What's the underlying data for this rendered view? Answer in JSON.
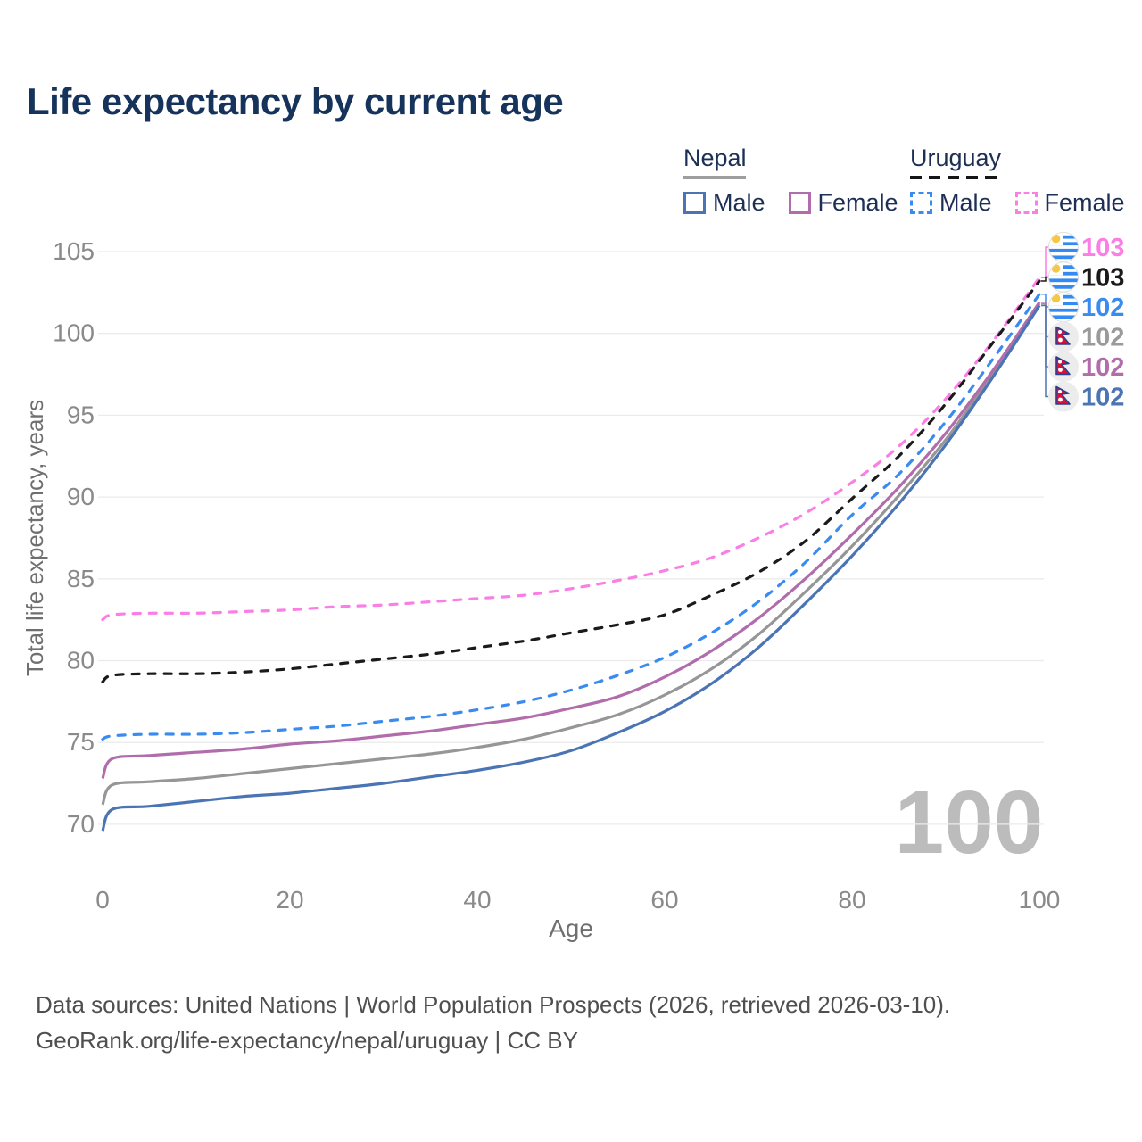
{
  "title": "Life expectancy by current age",
  "legend": {
    "groups": [
      {
        "country": "Nepal",
        "line_style": "solid",
        "underline_color": "#9e9e9e",
        "items": [
          {
            "label": "Male",
            "color": "#4a74b4"
          },
          {
            "label": "Female",
            "color": "#b16cac"
          }
        ]
      },
      {
        "country": "Uruguay",
        "line_style": "dashed",
        "underline_color": "#151515",
        "items": [
          {
            "label": "Male",
            "color": "#3a8bf0"
          },
          {
            "label": "Female",
            "color": "#fb7de6"
          }
        ]
      }
    ]
  },
  "chart_data": {
    "type": "line",
    "title": "Life expectancy by current age",
    "xlabel": "Age",
    "ylabel": "Total life expectancy, years",
    "xlim": [
      0,
      100
    ],
    "ylim": [
      69,
      105.5
    ],
    "x_ticks": [
      0,
      20,
      40,
      60,
      80,
      100
    ],
    "y_ticks": [
      70,
      75,
      80,
      85,
      90,
      95,
      100,
      105
    ],
    "grid": "horizontal-only",
    "legend_position": "top-right",
    "watermark": "100",
    "x": [
      0,
      1,
      5,
      10,
      15,
      20,
      25,
      30,
      35,
      40,
      45,
      50,
      55,
      60,
      65,
      70,
      75,
      80,
      85,
      90,
      95,
      100
    ],
    "series": [
      {
        "name": "Uruguay Female",
        "country": "Uruguay",
        "sex": "Female",
        "line": "dashed",
        "color": "#fb7de6",
        "flag": "uruguay",
        "end_label": "103",
        "end_label_color": "#fb7de6",
        "values": [
          82.5,
          82.8,
          82.9,
          82.9,
          83.0,
          83.1,
          83.3,
          83.4,
          83.6,
          83.8,
          84.0,
          84.4,
          84.9,
          85.5,
          86.3,
          87.5,
          89.0,
          90.9,
          93.1,
          96.0,
          99.5,
          103.4
        ]
      },
      {
        "name": "Uruguay",
        "country": "Uruguay",
        "sex": "Both",
        "line": "dashed",
        "color": "#1a1a1a",
        "flag": "uruguay",
        "end_label": "103",
        "end_label_color": "#1a1a1a",
        "values": [
          78.7,
          79.1,
          79.2,
          79.2,
          79.3,
          79.5,
          79.8,
          80.1,
          80.4,
          80.8,
          81.2,
          81.7,
          82.2,
          82.8,
          84.0,
          85.4,
          87.3,
          89.9,
          92.5,
          95.7,
          99.4,
          103.2
        ]
      },
      {
        "name": "Uruguay Male",
        "country": "Uruguay",
        "sex": "Male",
        "line": "dashed",
        "color": "#3a8bf0",
        "flag": "uruguay",
        "end_label": "102",
        "end_label_color": "#3a8bf0",
        "values": [
          75.2,
          75.4,
          75.5,
          75.5,
          75.6,
          75.8,
          76.0,
          76.3,
          76.6,
          77.0,
          77.5,
          78.2,
          79.1,
          80.2,
          81.7,
          83.6,
          86.0,
          88.9,
          91.4,
          94.6,
          98.4,
          102.4
        ]
      },
      {
        "name": "Nepal",
        "country": "Nepal",
        "sex": "Both",
        "line": "solid",
        "color": "#969696",
        "flag": "nepal",
        "end_label": "102",
        "end_label_color": "#9a9a9a",
        "values": [
          71.2,
          72.4,
          72.6,
          72.8,
          73.1,
          73.4,
          73.7,
          74.0,
          74.3,
          74.7,
          75.2,
          75.9,
          76.7,
          77.9,
          79.5,
          81.6,
          84.2,
          87.0,
          90.1,
          93.5,
          97.5,
          101.8
        ]
      },
      {
        "name": "Nepal Female",
        "country": "Nepal",
        "sex": "Female",
        "line": "solid",
        "color": "#b16cac",
        "flag": "nepal",
        "end_label": "102",
        "end_label_color": "#b16cac",
        "values": [
          72.8,
          74.0,
          74.2,
          74.4,
          74.6,
          74.9,
          75.1,
          75.4,
          75.7,
          76.1,
          76.5,
          77.1,
          77.8,
          79.0,
          80.6,
          82.6,
          85.0,
          87.7,
          90.6,
          93.9,
          97.7,
          101.9
        ]
      },
      {
        "name": "Nepal Male",
        "country": "Nepal",
        "sex": "Male",
        "line": "solid",
        "color": "#4a74b4",
        "flag": "nepal",
        "end_label": "102",
        "end_label_color": "#4a74b4",
        "values": [
          69.6,
          70.9,
          71.1,
          71.4,
          71.7,
          71.9,
          72.2,
          72.5,
          72.9,
          73.3,
          73.8,
          74.5,
          75.6,
          76.9,
          78.6,
          80.8,
          83.5,
          86.4,
          89.6,
          93.2,
          97.3,
          101.7
        ]
      }
    ]
  },
  "colors": {
    "title": "#16335b",
    "axis_text": "#8a8a8a",
    "axis_title": "#6f6f6f",
    "grid": "#ebebeb",
    "watermark": "#bcbcbc",
    "uruguay_flag_blue": "#338af3",
    "uruguay_flag_sun": "#f6c744",
    "nepal_flag_red": "#dc0f36",
    "nepal_flag_border": "#2a3f8f"
  },
  "footer": {
    "line1": "Data sources: United Nations | World Population Prospects (2026, retrieved 2026-03-10).",
    "line2": "GeoRank.org/life-expectancy/nepal/uruguay | CC BY"
  }
}
